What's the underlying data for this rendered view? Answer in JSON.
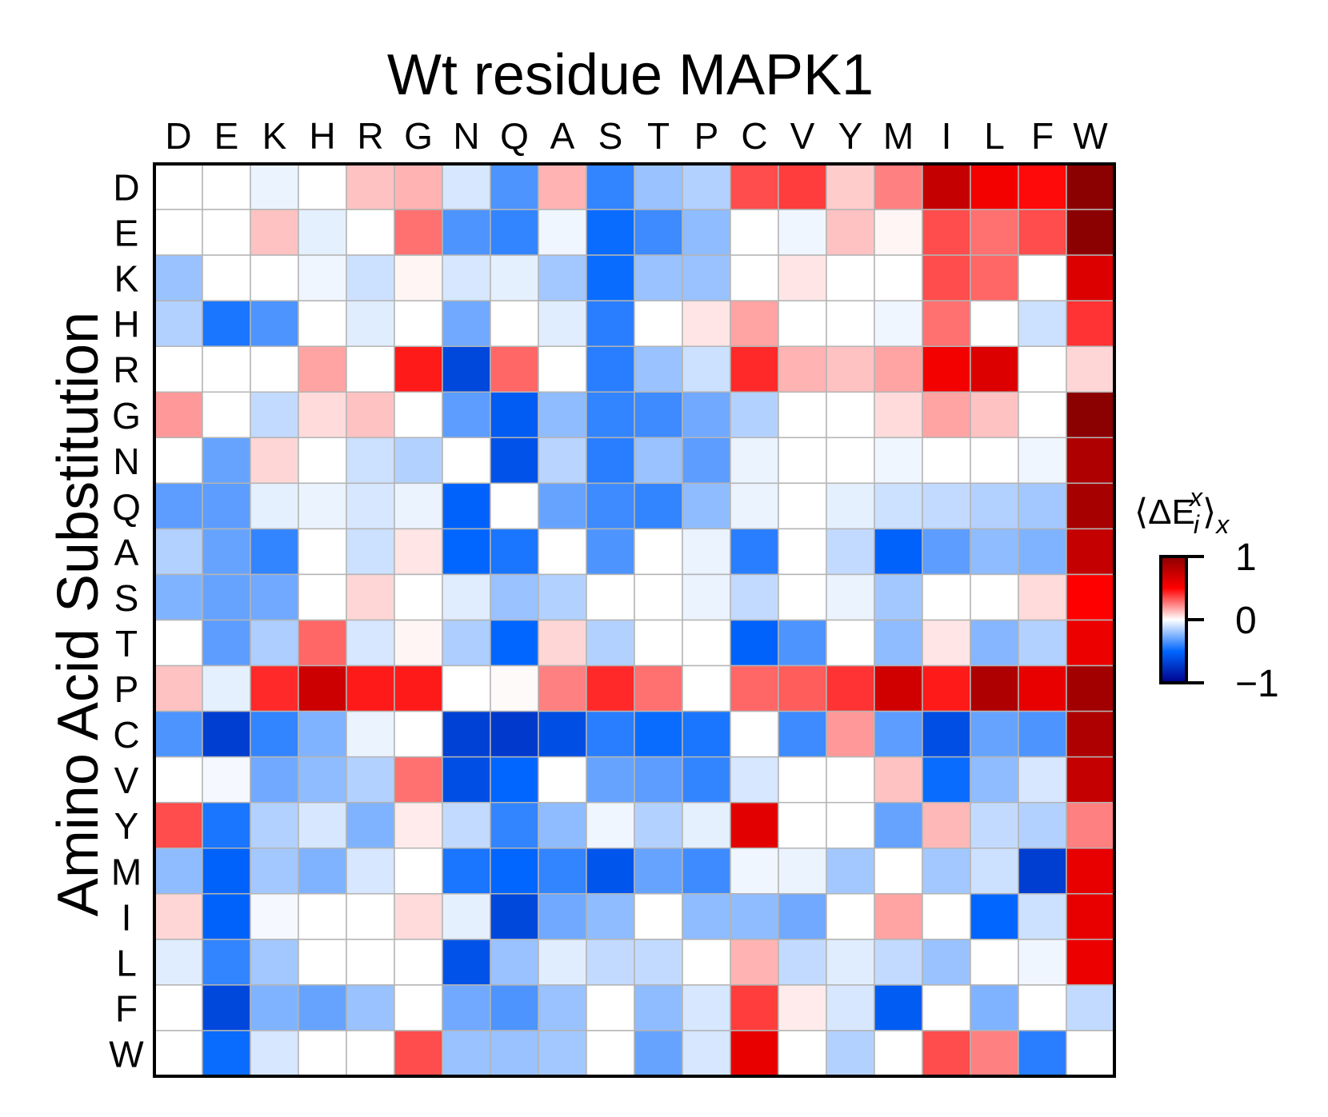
{
  "chart_data": {
    "type": "heatmap",
    "title": "Wt residue MAPK1",
    "xlabel": "",
    "ylabel": "Amino Acid Substitution",
    "x_categories": [
      "D",
      "E",
      "K",
      "H",
      "R",
      "G",
      "N",
      "Q",
      "A",
      "S",
      "T",
      "P",
      "C",
      "V",
      "Y",
      "M",
      "I",
      "L",
      "F",
      "W"
    ],
    "y_categories": [
      "D",
      "E",
      "K",
      "H",
      "R",
      "G",
      "N",
      "Q",
      "A",
      "S",
      "T",
      "P",
      "C",
      "V",
      "Y",
      "M",
      "I",
      "L",
      "F",
      "W"
    ],
    "value_range": [
      -1,
      1
    ],
    "colormap": [
      "#00008b",
      "#0066ff",
      "#ffffff",
      "#ff0000",
      "#8b0000"
    ],
    "colorbar": {
      "label_main": "⟨ΔE",
      "label_sup": "x",
      "label_sub": "i",
      "label_end": "⟩",
      "label_end_sub": "x",
      "ticks": [
        {
          "value": 1,
          "label": "1"
        },
        {
          "value": 0,
          "label": "0"
        },
        {
          "value": -1,
          "label": "−1"
        }
      ]
    },
    "values": [
      [
        0.0,
        0.0,
        -0.04,
        0.0,
        0.12,
        0.15,
        -0.08,
        -0.35,
        0.15,
        -0.4,
        -0.2,
        -0.15,
        0.35,
        0.38,
        0.1,
        0.25,
        0.75,
        0.55,
        0.48,
        1.0
      ],
      [
        0.0,
        0.0,
        0.12,
        -0.05,
        0.0,
        0.28,
        -0.35,
        -0.4,
        -0.03,
        -0.48,
        -0.38,
        -0.22,
        0.0,
        -0.03,
        0.12,
        0.02,
        0.35,
        0.28,
        0.35,
        1.05
      ],
      [
        -0.2,
        0.0,
        0.0,
        -0.03,
        -0.1,
        0.02,
        -0.08,
        -0.05,
        -0.18,
        -0.48,
        -0.2,
        -0.2,
        0.0,
        0.05,
        0.0,
        0.0,
        0.35,
        0.3,
        0.0,
        0.65
      ],
      [
        -0.15,
        -0.45,
        -0.35,
        0.0,
        -0.06,
        0.0,
        -0.28,
        0.0,
        -0.06,
        -0.42,
        0.0,
        0.05,
        0.18,
        0.0,
        0.0,
        -0.03,
        0.28,
        0.0,
        -0.1,
        0.4
      ],
      [
        0.0,
        0.0,
        0.0,
        0.18,
        0.0,
        0.45,
        -0.65,
        0.3,
        0.0,
        -0.42,
        -0.2,
        -0.1,
        0.42,
        0.15,
        0.12,
        0.18,
        0.55,
        0.65,
        0.0,
        0.08
      ],
      [
        0.2,
        0.0,
        -0.12,
        0.07,
        0.12,
        0.0,
        -0.32,
        -0.55,
        -0.22,
        -0.4,
        -0.38,
        -0.28,
        -0.15,
        0.0,
        0.0,
        0.07,
        0.18,
        0.12,
        0.0,
        1.1
      ],
      [
        0.0,
        -0.3,
        0.08,
        0.0,
        -0.1,
        -0.15,
        0.0,
        -0.6,
        -0.14,
        -0.42,
        -0.2,
        -0.32,
        -0.04,
        0.0,
        0.0,
        -0.03,
        0.0,
        0.0,
        -0.03,
        0.85
      ],
      [
        -0.32,
        -0.32,
        -0.05,
        -0.04,
        -0.08,
        -0.04,
        -0.52,
        0.0,
        -0.3,
        -0.38,
        -0.4,
        -0.22,
        -0.04,
        0.0,
        -0.05,
        -0.1,
        -0.12,
        -0.15,
        -0.18,
        0.88
      ],
      [
        -0.15,
        -0.3,
        -0.4,
        0.0,
        -0.1,
        0.05,
        -0.5,
        -0.45,
        0.0,
        -0.35,
        0.0,
        -0.04,
        -0.42,
        0.0,
        -0.12,
        -0.52,
        -0.32,
        -0.22,
        -0.25,
        0.75
      ],
      [
        -0.25,
        -0.3,
        -0.28,
        0.0,
        0.08,
        0.0,
        -0.06,
        -0.2,
        -0.15,
        0.0,
        0.0,
        -0.04,
        -0.12,
        0.0,
        -0.04,
        -0.18,
        0.0,
        0.0,
        0.07,
        0.5
      ],
      [
        0.0,
        -0.32,
        -0.16,
        0.3,
        -0.08,
        0.02,
        -0.16,
        -0.5,
        0.08,
        -0.15,
        0.0,
        0.0,
        -0.52,
        -0.35,
        0.0,
        -0.22,
        0.05,
        -0.24,
        -0.15,
        0.58
      ],
      [
        0.12,
        -0.05,
        0.42,
        0.72,
        0.45,
        0.45,
        0.0,
        0.01,
        0.25,
        0.42,
        0.28,
        0.0,
        0.3,
        0.32,
        0.4,
        0.7,
        0.45,
        0.85,
        0.6,
        0.9
      ],
      [
        -0.35,
        -0.7,
        -0.4,
        -0.25,
        -0.04,
        0.0,
        -0.68,
        -0.72,
        -0.62,
        -0.42,
        -0.48,
        -0.45,
        0.0,
        -0.38,
        0.2,
        -0.32,
        -0.62,
        -0.3,
        -0.35,
        0.85
      ],
      [
        0.0,
        -0.02,
        -0.28,
        -0.22,
        -0.15,
        0.28,
        -0.62,
        -0.5,
        0.0,
        -0.3,
        -0.32,
        -0.4,
        -0.08,
        0.0,
        0.0,
        0.12,
        -0.48,
        -0.22,
        -0.08,
        0.75
      ],
      [
        0.35,
        -0.45,
        -0.15,
        -0.08,
        -0.25,
        0.04,
        -0.12,
        -0.4,
        -0.22,
        -0.03,
        -0.15,
        -0.05,
        0.62,
        0.0,
        0.0,
        -0.3,
        0.14,
        -0.12,
        -0.15,
        0.25
      ],
      [
        -0.22,
        -0.52,
        -0.18,
        -0.25,
        -0.08,
        0.0,
        -0.45,
        -0.5,
        -0.4,
        -0.58,
        -0.3,
        -0.38,
        -0.03,
        -0.04,
        -0.18,
        0.0,
        -0.18,
        -0.1,
        -0.7,
        0.6
      ],
      [
        0.08,
        -0.52,
        -0.02,
        0.0,
        0.0,
        0.07,
        -0.05,
        -0.65,
        -0.28,
        -0.22,
        0.0,
        -0.22,
        -0.22,
        -0.28,
        0.0,
        0.18,
        0.0,
        -0.5,
        -0.1,
        0.6
      ],
      [
        -0.06,
        -0.4,
        -0.18,
        0.0,
        0.0,
        0.0,
        -0.6,
        -0.2,
        -0.06,
        -0.12,
        -0.12,
        0.0,
        0.15,
        -0.12,
        -0.06,
        -0.12,
        -0.2,
        0.0,
        -0.03,
        0.58
      ],
      [
        0.0,
        -0.65,
        -0.25,
        -0.3,
        -0.2,
        0.0,
        -0.28,
        -0.35,
        -0.2,
        0.0,
        -0.22,
        -0.08,
        0.38,
        0.04,
        -0.08,
        -0.55,
        0.0,
        -0.25,
        0.0,
        -0.12
      ],
      [
        0.0,
        -0.48,
        -0.08,
        0.0,
        0.0,
        0.35,
        -0.2,
        -0.2,
        -0.18,
        0.0,
        -0.3,
        -0.08,
        0.6,
        0.0,
        -0.15,
        0.0,
        0.35,
        0.25,
        -0.42,
        0.0
      ]
    ]
  }
}
